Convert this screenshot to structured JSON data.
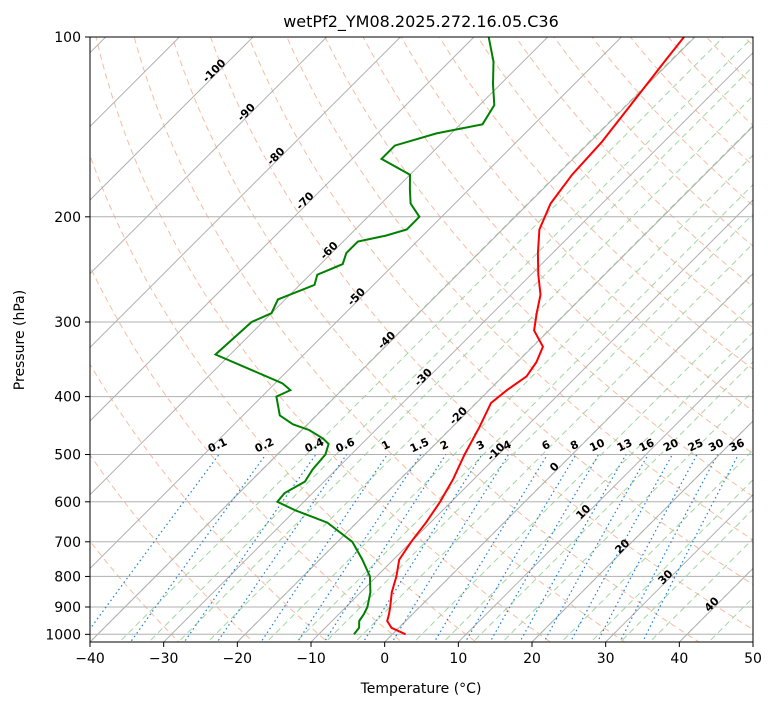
{
  "chart_data": {
    "type": "skew-t",
    "title": "wetPf2_YM08.2025.272.16.05.C36",
    "xlabel": "Temperature (°C)",
    "ylabel": "Pressure (hPa)",
    "xlim": [
      -40,
      50
    ],
    "ylim": [
      1030,
      100
    ],
    "y_scale": "log",
    "grid": true,
    "x_ticks": [
      -40,
      -30,
      -20,
      -10,
      0,
      10,
      20,
      30,
      40,
      50
    ],
    "x_tick_labels": [
      "−40",
      "−30",
      "−20",
      "−10",
      "0",
      "10",
      "20",
      "30",
      "40",
      "50"
    ],
    "y_ticks": [
      1000,
      900,
      800,
      700,
      600,
      500,
      400,
      300,
      200,
      100
    ],
    "y_tick_labels": [
      "1000",
      "900",
      "800",
      "700",
      "600",
      "500",
      "400",
      "300",
      "200",
      "100"
    ],
    "colors": {
      "temperature": "#ff0000",
      "dewpoint": "#008000",
      "grid": "#b0b0b0",
      "dry_adiabat": "#f4a582",
      "moist_adiabat": "#8fcf8f",
      "mixing_ratio": "#1e7fd6",
      "isotherm_label": "#1f6fbf",
      "moist_label": "#d62728",
      "mixing_label": "#1e90ff"
    },
    "series": [
      {
        "name": "",
        "kind": "temperature",
        "points": [
          [
            1000,
            1.8
          ],
          [
            975,
            -1.0
          ],
          [
            950,
            -2.5
          ],
          [
            925,
            -3.2
          ],
          [
            900,
            -4.0
          ],
          [
            850,
            -5.8
          ],
          [
            800,
            -7.3
          ],
          [
            750,
            -9.2
          ],
          [
            700,
            -10.0
          ],
          [
            650,
            -10.6
          ],
          [
            600,
            -11.5
          ],
          [
            550,
            -12.8
          ],
          [
            500,
            -14.6
          ],
          [
            450,
            -16.3
          ],
          [
            410,
            -18.0
          ],
          [
            390,
            -17.6
          ],
          [
            370,
            -16.8
          ],
          [
            350,
            -17.4
          ],
          [
            330,
            -18.6
          ],
          [
            310,
            -22.0
          ],
          [
            290,
            -24.0
          ],
          [
            270,
            -26.0
          ],
          [
            250,
            -29.0
          ],
          [
            230,
            -32.0
          ],
          [
            210,
            -35.0
          ],
          [
            190,
            -37.0
          ],
          [
            170,
            -38.0
          ],
          [
            150,
            -38.4
          ],
          [
            130,
            -39.5
          ],
          [
            110,
            -40.8
          ],
          [
            100,
            -41.5
          ]
        ]
      },
      {
        "name": "",
        "kind": "dewpoint",
        "points": [
          [
            1000,
            -5.2
          ],
          [
            975,
            -5.4
          ],
          [
            950,
            -6.3
          ],
          [
            925,
            -6.6
          ],
          [
            900,
            -7.1
          ],
          [
            850,
            -8.7
          ],
          [
            800,
            -10.9
          ],
          [
            750,
            -14.2
          ],
          [
            700,
            -18.0
          ],
          [
            650,
            -24.0
          ],
          [
            620,
            -30.0
          ],
          [
            600,
            -33.6
          ],
          [
            580,
            -33.8
          ],
          [
            555,
            -32.6
          ],
          [
            530,
            -33.2
          ],
          [
            500,
            -33.5
          ],
          [
            480,
            -34.5
          ],
          [
            470,
            -36.0
          ],
          [
            455,
            -39.0
          ],
          [
            445,
            -42.0
          ],
          [
            430,
            -45.0
          ],
          [
            400,
            -48.0
          ],
          [
            395,
            -47.5
          ],
          [
            390,
            -47.0
          ],
          [
            380,
            -49.0
          ],
          [
            340,
            -62.0
          ],
          [
            300,
            -61.5
          ],
          [
            290,
            -60.0
          ],
          [
            275,
            -61.0
          ],
          [
            260,
            -58.0
          ],
          [
            250,
            -59.0
          ],
          [
            240,
            -57.0
          ],
          [
            230,
            -58.0
          ],
          [
            220,
            -58.0
          ],
          [
            215,
            -55.0
          ],
          [
            210,
            -53.0
          ],
          [
            200,
            -53.0
          ],
          [
            190,
            -56.0
          ],
          [
            180,
            -58.0
          ],
          [
            170,
            -60.0
          ],
          [
            160,
            -66.0
          ],
          [
            152,
            -66.0
          ],
          [
            145,
            -62.0
          ],
          [
            140,
            -57.0
          ],
          [
            130,
            -58.0
          ],
          [
            120,
            -61.0
          ],
          [
            110,
            -64.0
          ],
          [
            100,
            -68.0
          ]
        ]
      }
    ],
    "mixing_ratio_lines": [
      0.1,
      0.2,
      0.4,
      0.6,
      1,
      1.5,
      2,
      3,
      4,
      6,
      8,
      10,
      13,
      16,
      20,
      25,
      30,
      36
    ],
    "mixing_ratio_labels": [
      "0.1",
      "0.2",
      "0.4",
      "0.6",
      "1",
      "1.5",
      "2",
      "3",
      "4",
      "6",
      "8",
      "10",
      "13",
      "16",
      "20",
      "25",
      "30",
      "36"
    ],
    "isotherm_labels": [
      {
        "text": "-100",
        "t": -100,
        "p": 115
      },
      {
        "text": "-90",
        "t": -90,
        "p": 135
      },
      {
        "text": "-80",
        "t": -80,
        "p": 160
      },
      {
        "text": "-70",
        "t": -70,
        "p": 190
      },
      {
        "text": "-60",
        "t": -60,
        "p": 230
      },
      {
        "text": "-50",
        "t": -50,
        "p": 275
      },
      {
        "text": "-40",
        "t": -40,
        "p": 325
      },
      {
        "text": "-30",
        "t": -30,
        "p": 375
      },
      {
        "text": "-20",
        "t": -20,
        "p": 435
      },
      {
        "text": "-10",
        "t": -10,
        "p": 500
      }
    ],
    "moist_labels": [
      {
        "text": "0",
        "t": 0,
        "p": 530
      },
      {
        "text": "10",
        "t": 10,
        "p": 630
      },
      {
        "text": "20",
        "t": 20,
        "p": 720
      },
      {
        "text": "30",
        "t": 30,
        "p": 810
      },
      {
        "text": "40",
        "t": 40,
        "p": 900
      }
    ]
  }
}
